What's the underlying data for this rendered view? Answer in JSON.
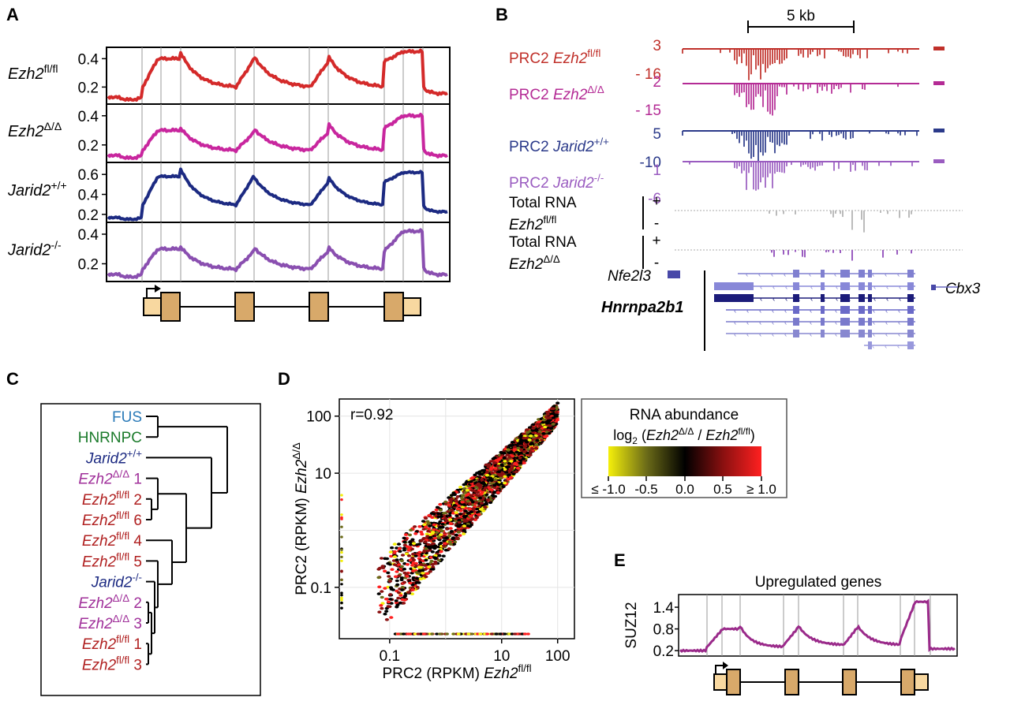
{
  "panels": {
    "A": {
      "letter": "A",
      "row_labels": [
        {
          "name": "Ezh2",
          "sup": "fl/fl",
          "color": "#d42a2a",
          "ticks": [
            "0.4",
            "0.2"
          ]
        },
        {
          "name": "Ezh2",
          "sup": "Δ/Δ",
          "color": "#c8269e",
          "ticks": [
            "0.4",
            "0.2"
          ]
        },
        {
          "name": "Jarid2",
          "sup": "+/+",
          "color": "#1c2a82",
          "ticks": [
            "0.6",
            "0.4",
            "0.2"
          ]
        },
        {
          "name": "Jarid2",
          "sup": "-/-",
          "color": "#8a4fb0",
          "ticks": [
            "0.4",
            "0.2"
          ]
        }
      ]
    },
    "B": {
      "letter": "B",
      "scale_label": "5 kb",
      "tracks": [
        {
          "prefix": "PRC2 ",
          "name": "Ezh2",
          "sup": "fl/fl",
          "top": "3",
          "bottom": "- 16",
          "color": "#c0302a"
        },
        {
          "prefix": "PRC2 ",
          "name": "Ezh2",
          "sup": "Δ/Δ",
          "top": "2",
          "bottom": "- 15",
          "color": "#b42b95"
        },
        {
          "prefix": "PRC2 ",
          "name": "Jarid2",
          "sup": "+/+",
          "top": "5",
          "bottom": "-10",
          "color": "#2b3a8a"
        },
        {
          "prefix": "PRC2 ",
          "name": "Jarid2",
          "sup": "-/-",
          "top": "1",
          "bottom": "-6",
          "color": "#9a5cc0"
        }
      ],
      "rna_tracks": [
        {
          "line1": "Total RNA",
          "name": "Ezh2",
          "sup": "fl/fl",
          "plus": "+",
          "minus": "-"
        },
        {
          "line1": "Total RNA",
          "name": "Ezh2",
          "sup": "Δ/Δ",
          "plus": "+",
          "minus": "-"
        }
      ],
      "genes": {
        "left": "Nfe2l3",
        "main": "Hnrnpa2b1",
        "right": "Cbx3"
      }
    },
    "C": {
      "letter": "C",
      "leaves": [
        {
          "text": "FUS",
          "sup": "",
          "suffix": "",
          "italic": false,
          "color": "#2a7ab8"
        },
        {
          "text": "HNRNPC",
          "sup": "",
          "suffix": "",
          "italic": false,
          "color": "#1a7a2a"
        },
        {
          "text": "Jarid2",
          "sup": "+/+",
          "suffix": "",
          "italic": true,
          "color": "#1c2a82"
        },
        {
          "text": "Ezh2",
          "sup": "Δ/Δ",
          "suffix": " 1",
          "italic": true,
          "color": "#a0309a"
        },
        {
          "text": "Ezh2",
          "sup": "fl/fl",
          "suffix": " 2",
          "italic": true,
          "color": "#b02020"
        },
        {
          "text": "Ezh2",
          "sup": "fl/fl",
          "suffix": " 6",
          "italic": true,
          "color": "#b02020"
        },
        {
          "text": "Ezh2",
          "sup": "fl/fl",
          "suffix": " 4",
          "italic": true,
          "color": "#b02020"
        },
        {
          "text": "Ezh2",
          "sup": "fl/fl",
          "suffix": " 5",
          "italic": true,
          "color": "#b02020"
        },
        {
          "text": "Jarid2",
          "sup": "-/-",
          "suffix": "",
          "italic": true,
          "color": "#1c2a82"
        },
        {
          "text": "Ezh2",
          "sup": "Δ/Δ",
          "suffix": " 2",
          "italic": true,
          "color": "#a0309a"
        },
        {
          "text": "Ezh2",
          "sup": "Δ/Δ",
          "suffix": " 3",
          "italic": true,
          "color": "#a0309a"
        },
        {
          "text": "Ezh2",
          "sup": "fl/fl",
          "suffix": " 1",
          "italic": true,
          "color": "#b02020"
        },
        {
          "text": "Ezh2",
          "sup": "fl/fl",
          "suffix": " 3",
          "italic": true,
          "color": "#b02020"
        }
      ]
    },
    "D": {
      "letter": "D",
      "r_text": "r=0.92",
      "xlabel_prefix": "PRC2 (RPKM) ",
      "xlabel_name": "Ezh2",
      "xlabel_sup": "fl/fl",
      "ylabel_prefix": "PRC2 (RPKM) ",
      "ylabel_name": "Ezh2",
      "ylabel_sup": "Δ/Δ",
      "x_ticks": [
        "0.1",
        "10",
        "100"
      ],
      "y_ticks": [
        "100",
        "10",
        "0.1"
      ],
      "legend": {
        "title": "RNA abundance",
        "log_prefix": "log",
        "log_sub": "2",
        "num": "Ezh2",
        "num_sup": "Δ/Δ",
        "den": "Ezh2",
        "den_sup": "fl/fl",
        "ticks": [
          "≤ -1.0",
          "-0.5",
          "0.0",
          "0.5",
          "≥ 1.0"
        ],
        "colors": [
          "#f5f00a",
          "#6b6b18",
          "#000000",
          "#8a1010",
          "#ff2020"
        ]
      }
    },
    "E": {
      "letter": "E",
      "title": "Upregulated genes",
      "ylabel": "SUZ12",
      "ticks": [
        "1.4",
        "0.8",
        "0.2"
      ]
    }
  },
  "chart_data": [
    {
      "type": "line",
      "panel": "A",
      "title": "",
      "xlabel": "",
      "ylabel": "",
      "note": "metagene profiles over gene model, 4 stacked rows",
      "series": [
        {
          "name": "Ezh2 fl/fl"
        },
        {
          "name": "Ezh2 Δ/Δ"
        },
        {
          "name": "Jarid2 +/+"
        },
        {
          "name": "Jarid2 -/-"
        }
      ],
      "peaks_approx": {
        "Ezh2 fl/fl": [
          0.4,
          0.42,
          0.4,
          0.4,
          0.45
        ],
        "Ezh2 Δ/Δ": [
          0.3,
          0.3,
          0.3,
          0.33,
          0.4
        ],
        "Jarid2 +/+": [
          0.58,
          0.62,
          0.55,
          0.55,
          0.62
        ],
        "Jarid2 -/-": [
          0.3,
          0.3,
          0.3,
          0.3,
          0.42
        ]
      }
    },
    {
      "type": "scatter",
      "panel": "D",
      "x_scale": "log",
      "y_scale": "log",
      "xlim": [
        0.01,
        200
      ],
      "ylim": [
        0.01,
        200
      ],
      "r": 0.92
    },
    {
      "type": "line",
      "panel": "E",
      "title": "Upregulated genes",
      "ylabel": "SUZ12",
      "ylim": [
        0.1,
        1.7
      ],
      "peaks_approx": [
        0.8,
        0.85,
        0.85,
        1.55
      ]
    }
  ]
}
